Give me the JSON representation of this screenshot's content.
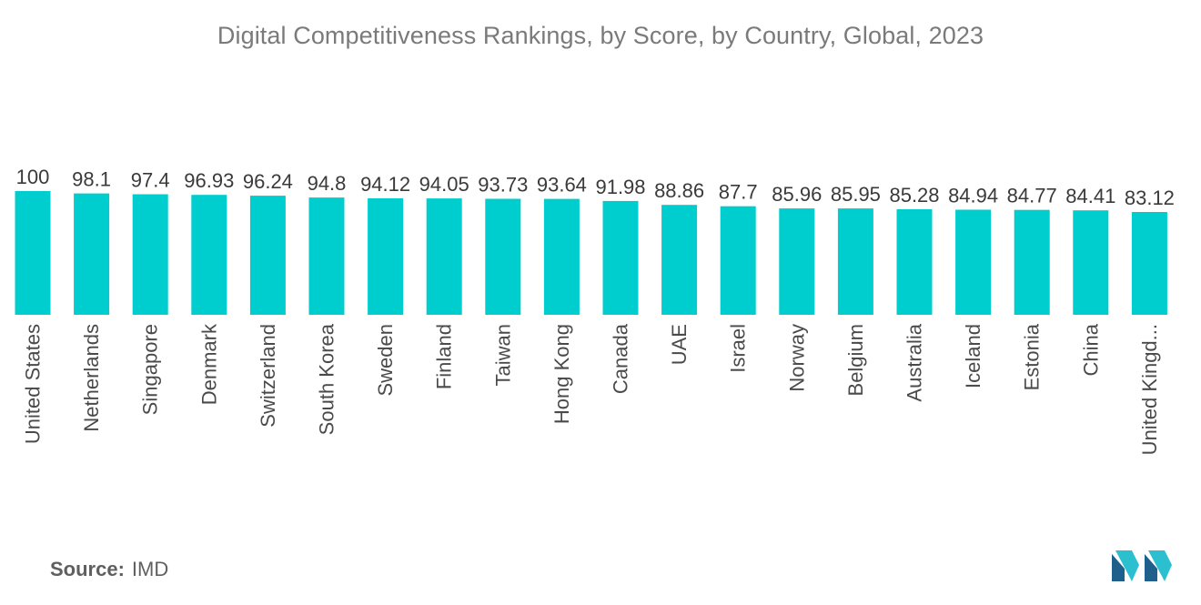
{
  "title": "Digital Competitiveness Rankings, by Score, by Country, Global, 2023",
  "source": {
    "label": "Source:",
    "value": "IMD"
  },
  "logo": {
    "name": "mordor-intelligence-logo"
  },
  "colors": {
    "bar": "#00CECE",
    "value_label": "#3a3a3a",
    "category_label": "#4a4a4a",
    "title": "#7a7a7a",
    "logo_dark": "#1f5f8b",
    "logo_light": "#2bbfcf"
  },
  "chart_data": {
    "type": "bar",
    "categories": [
      "United States",
      "Netherlands",
      "Singapore",
      "Denmark",
      "Switzerland",
      "South Korea",
      "Sweden",
      "Finland",
      "Taiwan",
      "Hong Kong",
      "Canada",
      "UAE",
      "Israel",
      "Norway",
      "Belgium",
      "Australia",
      "Iceland",
      "Estonia",
      "China",
      "United Kingd..."
    ],
    "values": [
      100,
      98.1,
      97.4,
      96.93,
      96.24,
      94.8,
      94.12,
      94.05,
      93.73,
      93.64,
      91.98,
      88.86,
      87.7,
      85.96,
      85.95,
      85.28,
      84.94,
      84.77,
      84.41,
      83.12
    ],
    "value_labels": [
      "100",
      "98.1",
      "97.4",
      "96.93",
      "96.24",
      "94.8",
      "94.12",
      "94.05",
      "93.73",
      "93.64",
      "91.98",
      "88.86",
      "87.7",
      "85.96",
      "85.95",
      "85.28",
      "84.94",
      "84.77",
      "84.41",
      "83.12"
    ],
    "title": "Digital Competitiveness Rankings, by Score, by Country, Global, 2023",
    "xlabel": "",
    "ylabel": "",
    "ylim": [
      0,
      100
    ],
    "grid": false,
    "legend": "none"
  }
}
